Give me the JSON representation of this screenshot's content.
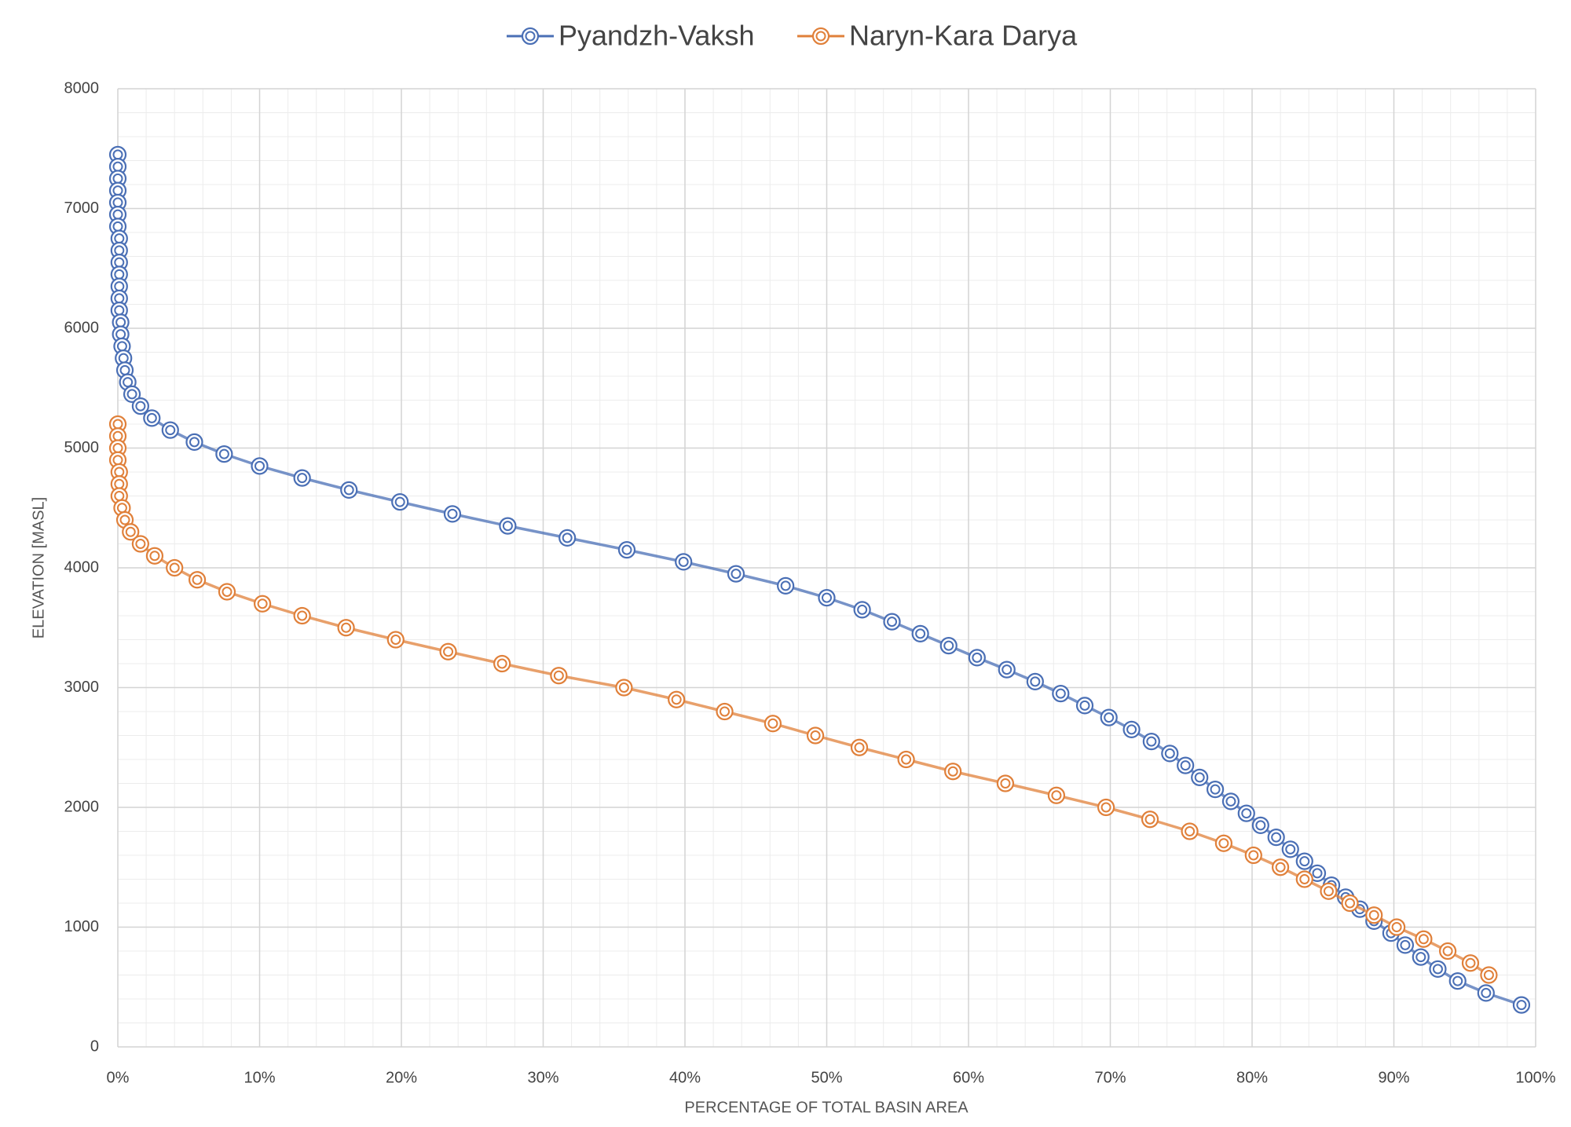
{
  "chart_data": {
    "type": "scatter",
    "x_label": "PERCENTAGE OF TOTAL BASIN AREA",
    "y_label": "ELEVATION [MASL]",
    "xlim": [
      0,
      100
    ],
    "ylim": [
      0,
      8000
    ],
    "xticks": [
      {
        "value": 0,
        "label": "0%"
      },
      {
        "value": 10,
        "label": "10%"
      },
      {
        "value": 20,
        "label": "20%"
      },
      {
        "value": 30,
        "label": "30%"
      },
      {
        "value": 40,
        "label": "40%"
      },
      {
        "value": 50,
        "label": "50%"
      },
      {
        "value": 60,
        "label": "60%"
      },
      {
        "value": 70,
        "label": "70%"
      },
      {
        "value": 80,
        "label": "80%"
      },
      {
        "value": 90,
        "label": "90%"
      },
      {
        "value": 100,
        "label": "100%"
      }
    ],
    "yticks": [
      0,
      1000,
      2000,
      3000,
      4000,
      5000,
      6000,
      7000,
      8000
    ],
    "grid": true,
    "minor_grid": true,
    "legend": "top",
    "series": [
      {
        "name": "Pyandzh-Vaksh",
        "color": "#4a6fb5",
        "x": [
          0.0,
          0.0,
          0.0,
          0.0,
          0.0,
          0.0,
          0.0,
          0.1,
          0.1,
          0.1,
          0.1,
          0.1,
          0.1,
          0.1,
          0.2,
          0.2,
          0.3,
          0.4,
          0.5,
          0.7,
          1.0,
          1.6,
          2.4,
          3.7,
          5.4,
          7.5,
          10.0,
          13.0,
          16.3,
          19.9,
          23.6,
          27.5,
          31.7,
          35.9,
          39.9,
          43.6,
          47.1,
          50.0,
          52.5,
          54.6,
          56.6,
          58.6,
          60.6,
          62.7,
          64.7,
          66.5,
          68.2,
          69.9,
          71.5,
          72.9,
          74.2,
          75.3,
          76.3,
          77.4,
          78.5,
          79.6,
          80.6,
          81.7,
          82.7,
          83.7,
          84.6,
          85.6,
          86.6,
          87.6,
          88.6,
          89.8,
          90.8,
          91.9,
          93.1,
          94.5,
          96.5,
          99.0
        ],
        "values": [
          7450,
          7350,
          7250,
          7150,
          7050,
          6950,
          6850,
          6750,
          6650,
          6550,
          6450,
          6350,
          6250,
          6150,
          6050,
          5950,
          5850,
          5750,
          5650,
          5550,
          5450,
          5350,
          5250,
          5150,
          5050,
          4950,
          4850,
          4750,
          4650,
          4550,
          4450,
          4350,
          4250,
          4150,
          4050,
          3950,
          3850,
          3750,
          3650,
          3550,
          3450,
          3350,
          3250,
          3150,
          3050,
          2950,
          2850,
          2750,
          2650,
          2550,
          2450,
          2350,
          2250,
          2150,
          2050,
          1950,
          1850,
          1750,
          1650,
          1550,
          1450,
          1350,
          1250,
          1150,
          1050,
          950,
          850,
          750,
          650,
          550,
          450,
          350
        ]
      },
      {
        "name": "Naryn-Kara Darya",
        "color": "#e0803a",
        "x": [
          0.0,
          0.0,
          0.0,
          0.0,
          0.1,
          0.1,
          0.1,
          0.3,
          0.5,
          0.9,
          1.6,
          2.6,
          4.0,
          5.6,
          7.7,
          10.2,
          13.0,
          16.1,
          19.6,
          23.3,
          27.1,
          31.1,
          35.7,
          39.4,
          42.8,
          46.2,
          49.2,
          52.3,
          55.6,
          58.9,
          62.6,
          66.2,
          69.7,
          72.8,
          75.6,
          78.0,
          80.1,
          82.0,
          83.7,
          85.4,
          86.9,
          88.6,
          90.2,
          92.1,
          93.8,
          95.4,
          96.7
        ],
        "values": [
          5200,
          5100,
          5000,
          4900,
          4800,
          4700,
          4600,
          4500,
          4400,
          4300,
          4200,
          4100,
          4000,
          3900,
          3800,
          3700,
          3600,
          3500,
          3400,
          3300,
          3200,
          3100,
          3000,
          2900,
          2800,
          2700,
          2600,
          2500,
          2400,
          2300,
          2200,
          2100,
          2000,
          1900,
          1800,
          1700,
          1600,
          1500,
          1400,
          1300,
          1200,
          1100,
          1000,
          900,
          800,
          700,
          600
        ]
      }
    ]
  }
}
